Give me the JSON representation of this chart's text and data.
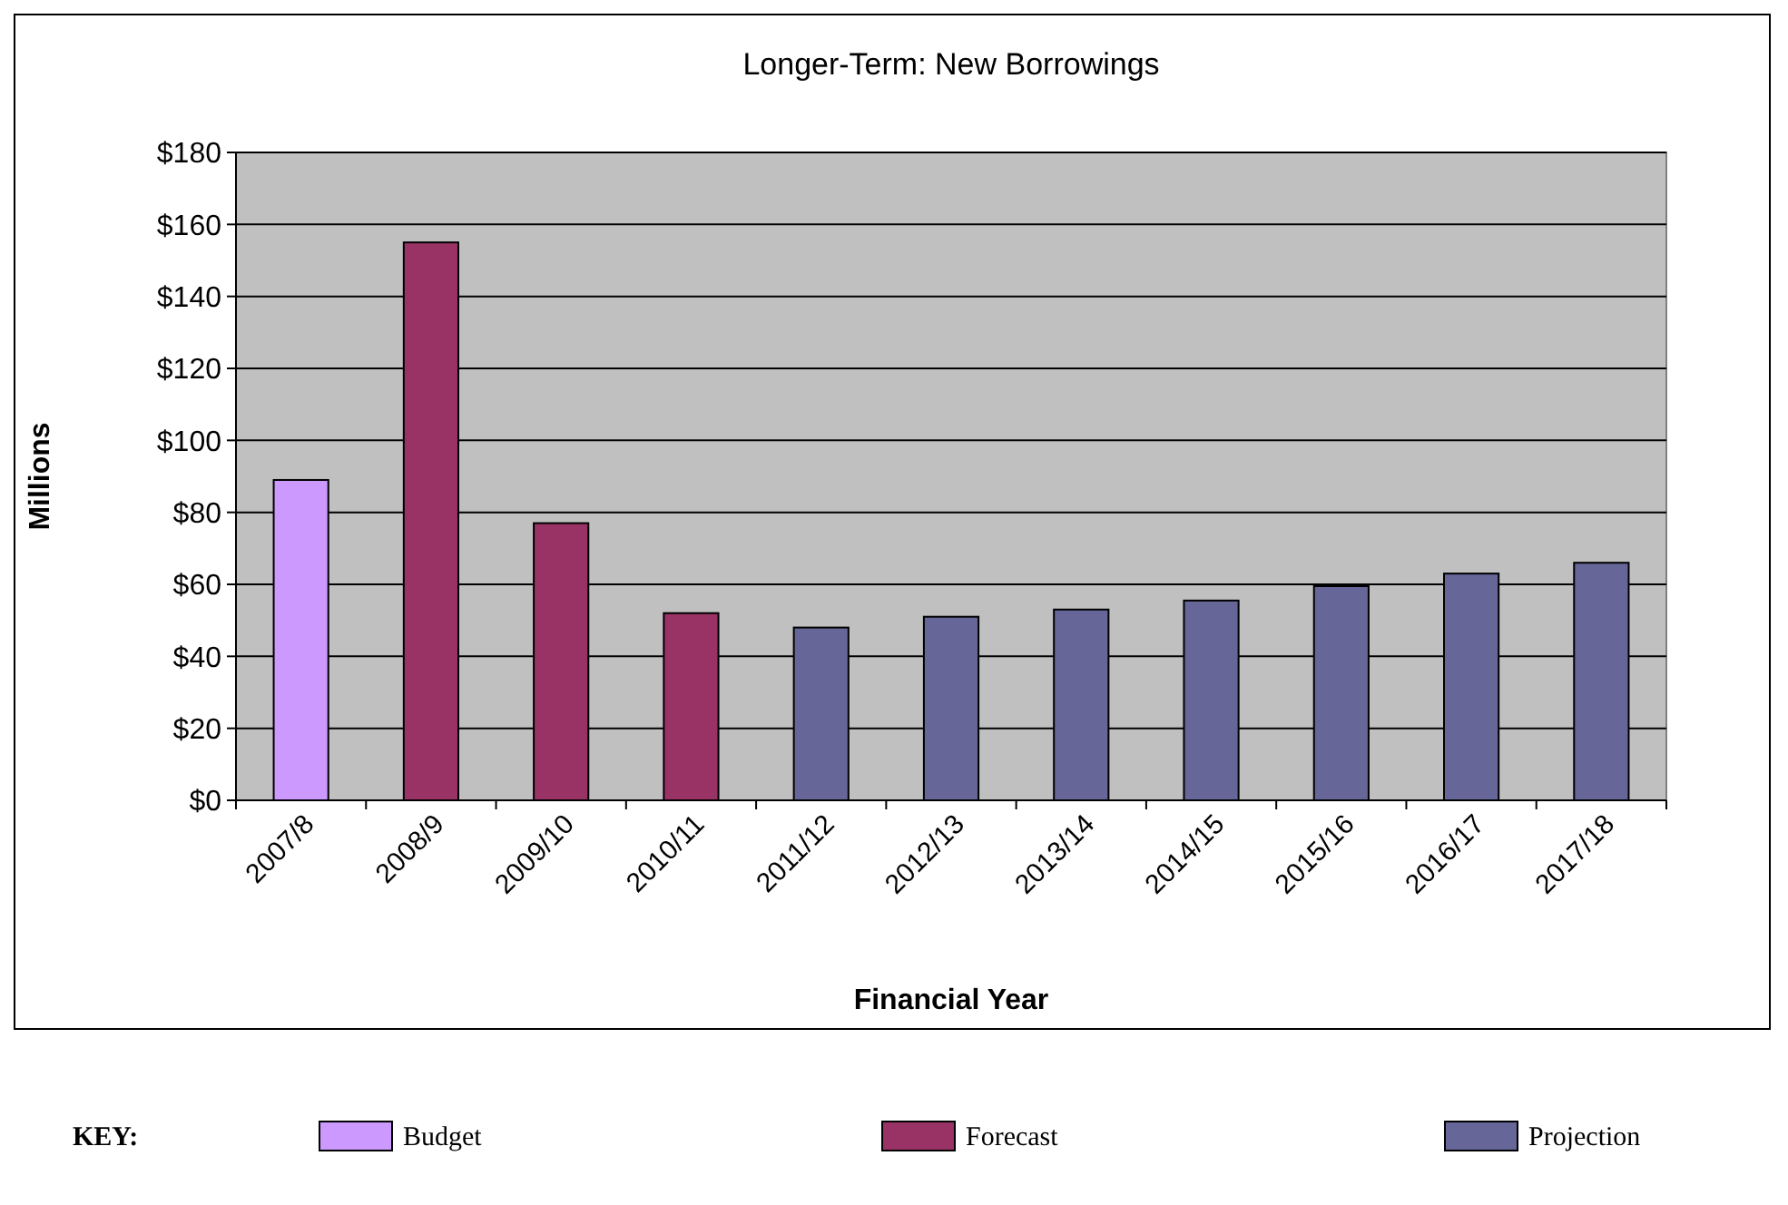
{
  "chart_data": {
    "type": "bar",
    "title": "Longer-Term: New Borrowings",
    "xlabel": "Financial Year",
    "ylabel": "Millions",
    "legend_title": "KEY:",
    "categories": [
      "2007/8",
      "2008/9",
      "2009/10",
      "2010/11",
      "2011/12",
      "2012/13",
      "2013/14",
      "2014/15",
      "2015/16",
      "2016/17",
      "2017/18"
    ],
    "ylim": [
      0,
      180
    ],
    "yticks": [
      {
        "value": 0,
        "label": "$0"
      },
      {
        "value": 20,
        "label": "$20"
      },
      {
        "value": 40,
        "label": "$40"
      },
      {
        "value": 60,
        "label": "$60"
      },
      {
        "value": 80,
        "label": "$80"
      },
      {
        "value": 100,
        "label": "$100"
      },
      {
        "value": 120,
        "label": "$120"
      },
      {
        "value": 140,
        "label": "$140"
      },
      {
        "value": 160,
        "label": "$160"
      },
      {
        "value": 180,
        "label": "$180"
      }
    ],
    "grid": "y",
    "legend": "bottom",
    "series": [
      {
        "name": "Budget",
        "color": "#cc99ff",
        "values": [
          89,
          null,
          null,
          null,
          null,
          null,
          null,
          null,
          null,
          null,
          null
        ]
      },
      {
        "name": "Forecast",
        "color": "#993366",
        "values": [
          null,
          155,
          77,
          52,
          null,
          null,
          null,
          null,
          null,
          null,
          null
        ]
      },
      {
        "name": "Projection",
        "color": "#666699",
        "values": [
          null,
          null,
          null,
          null,
          48,
          51,
          53,
          55.5,
          59.5,
          63,
          66
        ]
      }
    ]
  }
}
